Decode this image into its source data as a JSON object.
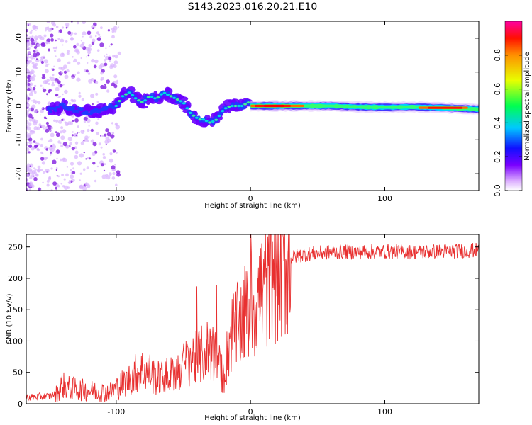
{
  "title": "S143.2023.016.20.21.E10",
  "chart_data": [
    {
      "type": "heatmap",
      "xlabel": "Height of straight line (km)",
      "ylabel": "Frequency (Hz)",
      "xlim": [
        -167,
        170
      ],
      "ylim": [
        -25,
        25
      ],
      "xticks": [
        -100,
        0,
        100
      ],
      "yticks": [
        -20,
        -10,
        0,
        10,
        20
      ],
      "ridge": {
        "x": [
          -148,
          -140,
          -130,
          -120,
          -110,
          -100,
          -95,
          -90,
          -85,
          -80,
          -75,
          -70,
          -65,
          -60,
          -55,
          -50,
          -45,
          -42,
          -38,
          -35,
          -30,
          -25,
          -20,
          -15,
          -10,
          -5,
          -3,
          -1,
          0,
          10,
          20,
          40,
          60,
          80,
          100,
          120,
          140,
          160,
          170
        ],
        "y": [
          -1,
          0,
          -1,
          -2,
          -1,
          0,
          3,
          4,
          2,
          1,
          3,
          2,
          4,
          3,
          2,
          1,
          -2,
          -3,
          -4,
          -4,
          -5,
          -4,
          -1,
          0,
          0,
          0,
          1,
          1,
          0,
          0,
          0,
          0,
          0,
          -0.3,
          -0.4,
          -0.3,
          -0.5,
          -0.8,
          -1
        ]
      },
      "colorbar": {
        "label": "Normalized spectral amplitude",
        "ticks": [
          0.0,
          0.2,
          0.4,
          0.6,
          0.8
        ],
        "range": [
          0,
          1
        ],
        "colormap": "rainbow"
      }
    },
    {
      "type": "line",
      "xlabel": "Height of straight line (km)",
      "ylabel": "SNR (10 * v/v)",
      "xlim": [
        -167,
        170
      ],
      "ylim": [
        0,
        270
      ],
      "xticks": [
        -100,
        0,
        100
      ],
      "yticks": [
        0,
        50,
        100,
        150,
        200,
        250
      ],
      "line_color": "#e83030",
      "series": [
        {
          "x": [
            -167,
            -150,
            -145,
            -140,
            -135,
            -125,
            -115,
            -105,
            -100,
            -90,
            -85,
            -80,
            -75,
            -70,
            -60,
            -50,
            -45,
            -40,
            -35,
            -30,
            -25,
            -20,
            -15,
            -10,
            -5,
            0,
            5,
            10,
            15,
            20,
            25,
            30,
            35,
            40,
            50,
            60,
            80,
            100,
            120,
            140,
            160,
            170
          ],
          "y": [
            10,
            12,
            15,
            30,
            25,
            22,
            20,
            18,
            25,
            40,
            50,
            55,
            50,
            40,
            45,
            60,
            75,
            70,
            80,
            90,
            70,
            40,
            110,
            120,
            140,
            155,
            170,
            185,
            200,
            215,
            225,
            232,
            236,
            238,
            240,
            242,
            242,
            243,
            242,
            243,
            244,
            245
          ]
        }
      ]
    }
  ]
}
